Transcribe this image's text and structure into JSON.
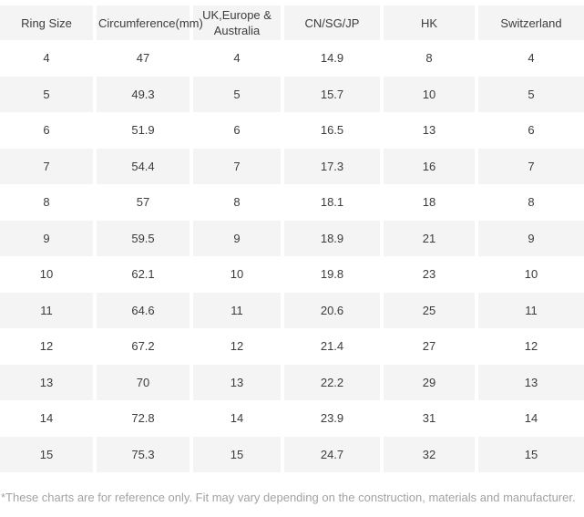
{
  "table": {
    "columns": [
      "Ring Size",
      "Circumference(mm)",
      "UK,Europe & Australia",
      "CN/SG/JP",
      "HK",
      "Switzerland"
    ],
    "rows": [
      [
        "4",
        "47",
        "4",
        "14.9",
        "8",
        "4"
      ],
      [
        "5",
        "49.3",
        "5",
        "15.7",
        "10",
        "5"
      ],
      [
        "6",
        "51.9",
        "6",
        "16.5",
        "13",
        "6"
      ],
      [
        "7",
        "54.4",
        "7",
        "17.3",
        "16",
        "7"
      ],
      [
        "8",
        "57",
        "8",
        "18.1",
        "18",
        "8"
      ],
      [
        "9",
        "59.5",
        "9",
        "18.9",
        "21",
        "9"
      ],
      [
        "10",
        "62.1",
        "10",
        "19.8",
        "23",
        "10"
      ],
      [
        "11",
        "64.6",
        "11",
        "20.6",
        "25",
        "11"
      ],
      [
        "12",
        "67.2",
        "12",
        "21.4",
        "27",
        "12"
      ],
      [
        "13",
        "70",
        "13",
        "22.2",
        "29",
        "13"
      ],
      [
        "14",
        "72.8",
        "14",
        "23.9",
        "31",
        "14"
      ],
      [
        "15",
        "75.3",
        "15",
        "24.7",
        "32",
        "15"
      ]
    ]
  },
  "footnote": "*These charts are for reference only. Fit may vary depending on the construction, materials and manufacturer.",
  "colors": {
    "row_alt_background": "#f4f4f4",
    "text": "#3c3c3c",
    "footnote_text": "#a2a2a2"
  }
}
